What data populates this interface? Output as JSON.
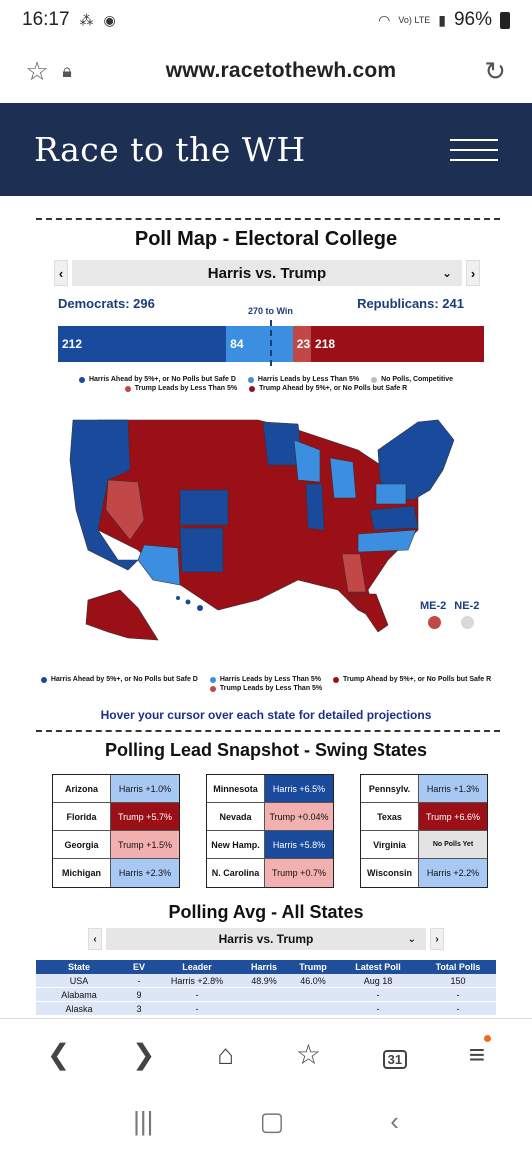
{
  "status_bar": {
    "time": "16:17",
    "battery": "96%",
    "network": "Vo) LTE"
  },
  "browser": {
    "url": "www.racetothewh.com"
  },
  "site": {
    "title": "Race to the WH"
  },
  "poll_map": {
    "title": "Poll Map  - Electoral College",
    "matchup": "Harris vs. Trump",
    "dem_label": "Democrats: 296",
    "rep_label": "Republicans: 241",
    "to_win_label": "270 to Win",
    "segments": [
      {
        "value": 212,
        "label": "212",
        "color": "#1a4a9c"
      },
      {
        "value": 84,
        "label": "84",
        "color": "#3b8ee0"
      },
      {
        "value": 23,
        "label": "23",
        "color": "#c24747"
      },
      {
        "value": 218,
        "label": "218",
        "color": "#9b1016"
      }
    ],
    "legend": [
      {
        "label": "Harris Ahead by 5%+, or No Polls but Safe D",
        "color": "#1a4a9c"
      },
      {
        "label": "Harris Leads by Less Than 5%",
        "color": "#3b8ee0"
      },
      {
        "label": "No Polls, Competitive",
        "color": "#bbbbbb"
      },
      {
        "label": "Trump Leads by Less Than 5%",
        "color": "#c24747"
      },
      {
        "label": "Trump Ahead by 5%+, or No Polls but Safe R",
        "color": "#9b1016"
      }
    ],
    "legend_bottom": [
      {
        "label": "Harris Ahead by 5%+, or No Polls but Safe D",
        "color": "#1a4a9c"
      },
      {
        "label": "Harris Leads by Less Than 5%",
        "color": "#3b8ee0"
      },
      {
        "label": "Trump Ahead by 5%+, or No Polls but Safe R",
        "color": "#9b1016"
      },
      {
        "label": "Trump Leads by Less Than 5%",
        "color": "#c24747"
      }
    ],
    "districts": [
      {
        "label": "ME-2",
        "color": "#c24747"
      },
      {
        "label": "NE-2",
        "color": "#d9d9d9"
      }
    ],
    "hover_note": "Hover your cursor over each state for detailed projections"
  },
  "swing": {
    "title": "Polling Lead Snapshot - Swing States",
    "columns": [
      [
        {
          "state": "Arizona",
          "lead": "Harris +1.0%",
          "bg": "#a9c9f5",
          "fg": "#111"
        },
        {
          "state": "Florida",
          "lead": "Trump +5.7%",
          "bg": "#9b1016",
          "fg": "#fff"
        },
        {
          "state": "Georgia",
          "lead": "Trump +1.5%",
          "bg": "#f3b0b0",
          "fg": "#111"
        },
        {
          "state": "Michigan",
          "lead": "Harris +2.3%",
          "bg": "#a9c9f5",
          "fg": "#111"
        }
      ],
      [
        {
          "state": "Minnesota",
          "lead": "Harris +6.5%",
          "bg": "#1a4a9c",
          "fg": "#fff"
        },
        {
          "state": "Nevada",
          "lead": "Trump +0.04%",
          "bg": "#f3b0b0",
          "fg": "#111"
        },
        {
          "state": "New Hamp.",
          "lead": "Harris +5.8%",
          "bg": "#1a4a9c",
          "fg": "#fff"
        },
        {
          "state": "N. Carolina",
          "lead": "Trump +0.7%",
          "bg": "#f3b0b0",
          "fg": "#111"
        }
      ],
      [
        {
          "state": "Pennsylv.",
          "lead": "Harris +1.3%",
          "bg": "#a9c9f5",
          "fg": "#111"
        },
        {
          "state": "Texas",
          "lead": "Trump +6.6%",
          "bg": "#9b1016",
          "fg": "#fff"
        },
        {
          "state": "Virginia",
          "lead": "No Polls Yet",
          "bg": "#e3e3e3",
          "fg": "#111"
        },
        {
          "state": "Wisconsin",
          "lead": "Harris +2.2%",
          "bg": "#a9c9f5",
          "fg": "#111"
        }
      ]
    ]
  },
  "polling_avg": {
    "title": "Polling Avg - All States",
    "matchup": "Harris vs. Trump",
    "headers": [
      "State",
      "EV",
      "Leader",
      "Harris",
      "Trump",
      "Latest Poll",
      "Total Polls"
    ],
    "rows": [
      [
        "USA",
        "-",
        "Harris +2.8%",
        "48.9%",
        "46.0%",
        "Aug 18",
        "150"
      ],
      [
        "Alabama",
        "9",
        "-",
        "",
        "",
        "-",
        "-"
      ],
      [
        "Alaska",
        "3",
        "-",
        "",
        "",
        "-",
        "-"
      ]
    ]
  },
  "bottom_nav": {
    "tabs_count": "31"
  }
}
